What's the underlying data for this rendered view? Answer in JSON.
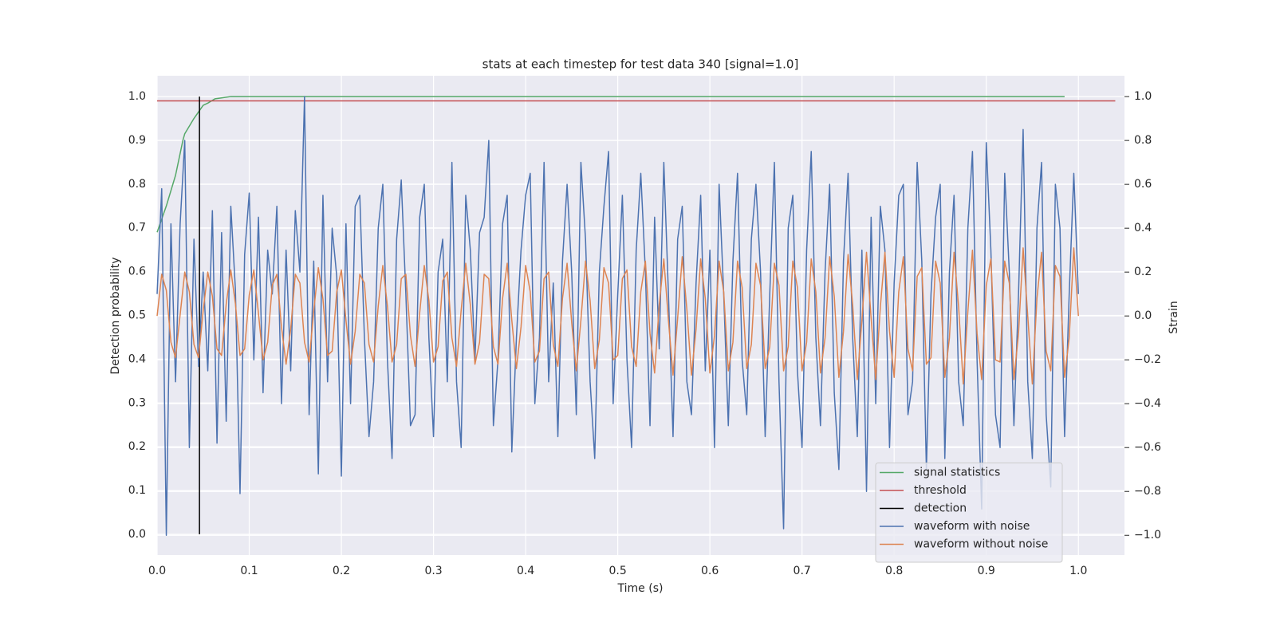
{
  "chart_data": {
    "type": "line",
    "title": "stats at each timestep for test data 340 [signal=1.0]",
    "xlabel": "Time (s)",
    "ylabel": "Detection probability",
    "y2label": "Strain",
    "xlim": [
      0,
      1.05
    ],
    "ylim": [
      -0.0475,
      1.0475
    ],
    "y2lim": [
      -1.09,
      1.095
    ],
    "xticks": [
      {
        "value": 0,
        "label": "0.0"
      },
      {
        "value": 0.1,
        "label": "0.1"
      },
      {
        "value": 0.2,
        "label": "0.2"
      },
      {
        "value": 0.3,
        "label": "0.3"
      },
      {
        "value": 0.4,
        "label": "0.4"
      },
      {
        "value": 0.5,
        "label": "0.5"
      },
      {
        "value": 0.6,
        "label": "0.6"
      },
      {
        "value": 0.7,
        "label": "0.7"
      },
      {
        "value": 0.8,
        "label": "0.8"
      },
      {
        "value": 0.9,
        "label": "0.9"
      },
      {
        "value": 1,
        "label": "1.0"
      }
    ],
    "yticks": [
      {
        "value": 0,
        "label": "0.0"
      },
      {
        "value": 0.1,
        "label": "0.1"
      },
      {
        "value": 0.2,
        "label": "0.2"
      },
      {
        "value": 0.3,
        "label": "0.3"
      },
      {
        "value": 0.4,
        "label": "0.4"
      },
      {
        "value": 0.5,
        "label": "0.5"
      },
      {
        "value": 0.6,
        "label": "0.6"
      },
      {
        "value": 0.7,
        "label": "0.7"
      },
      {
        "value": 0.8,
        "label": "0.8"
      },
      {
        "value": 0.9,
        "label": "0.9"
      },
      {
        "value": 1,
        "label": "1.0"
      }
    ],
    "y2ticks": [
      {
        "value": -1,
        "label": "−1.0"
      },
      {
        "value": -0.8,
        "label": "−0.8"
      },
      {
        "value": -0.6,
        "label": "−0.6"
      },
      {
        "value": -0.4,
        "label": "−0.4"
      },
      {
        "value": -0.2,
        "label": "−0.2"
      },
      {
        "value": 0,
        "label": "0.0"
      },
      {
        "value": 0.2,
        "label": "0.2"
      },
      {
        "value": 0.4,
        "label": "0.4"
      },
      {
        "value": 0.6,
        "label": "0.6"
      },
      {
        "value": 0.8,
        "label": "0.8"
      },
      {
        "value": 1,
        "label": "1.0"
      }
    ],
    "grid": true,
    "legend": "lower right",
    "x": [
      0,
      0.005,
      0.01,
      0.015,
      0.02,
      0.025,
      0.03,
      0.035,
      0.04,
      0.045,
      0.05,
      0.055,
      0.06,
      0.065,
      0.07,
      0.075,
      0.08,
      0.085,
      0.09,
      0.095,
      0.1,
      0.105,
      0.11,
      0.115,
      0.12,
      0.125,
      0.13,
      0.135,
      0.14,
      0.145,
      0.15,
      0.155,
      0.16,
      0.165,
      0.17,
      0.175,
      0.18,
      0.185,
      0.19,
      0.195,
      0.2,
      0.205,
      0.21,
      0.215,
      0.22,
      0.225,
      0.23,
      0.235,
      0.24,
      0.245,
      0.25,
      0.255,
      0.26,
      0.265,
      0.27,
      0.275,
      0.28,
      0.285,
      0.29,
      0.295,
      0.3,
      0.305,
      0.31,
      0.315,
      0.32,
      0.325,
      0.33,
      0.335,
      0.34,
      0.345,
      0.35,
      0.355,
      0.36,
      0.365,
      0.37,
      0.375,
      0.38,
      0.385,
      0.39,
      0.395,
      0.4,
      0.405,
      0.41,
      0.415,
      0.42,
      0.425,
      0.43,
      0.435,
      0.44,
      0.445,
      0.45,
      0.455,
      0.46,
      0.465,
      0.47,
      0.475,
      0.48,
      0.485,
      0.49,
      0.495,
      0.5,
      0.505,
      0.51,
      0.515,
      0.52,
      0.525,
      0.53,
      0.535,
      0.54,
      0.545,
      0.55,
      0.555,
      0.56,
      0.565,
      0.57,
      0.575,
      0.58,
      0.585,
      0.59,
      0.595,
      0.6,
      0.605,
      0.61,
      0.615,
      0.62,
      0.625,
      0.63,
      0.635,
      0.64,
      0.645,
      0.65,
      0.655,
      0.66,
      0.665,
      0.67,
      0.675,
      0.68,
      0.685,
      0.69,
      0.695,
      0.7,
      0.705,
      0.71,
      0.715,
      0.72,
      0.725,
      0.73,
      0.735,
      0.74,
      0.745,
      0.75,
      0.755,
      0.76,
      0.765,
      0.77,
      0.775,
      0.78,
      0.785,
      0.79,
      0.795,
      0.8,
      0.805,
      0.81,
      0.815,
      0.82,
      0.825,
      0.83,
      0.835,
      0.84,
      0.845,
      0.85,
      0.855,
      0.86,
      0.865,
      0.87,
      0.875,
      0.88,
      0.885,
      0.89,
      0.895,
      0.9,
      0.905,
      0.91,
      0.915,
      0.92,
      0.925,
      0.93,
      0.935,
      0.94,
      0.945,
      0.95,
      0.955,
      0.96,
      0.965,
      0.97,
      0.975,
      0.98,
      0.985,
      0.99,
      0.995,
      1
    ],
    "series": [
      {
        "name": "signal statistics",
        "color": "#55a868",
        "x": [
          0,
          0.005,
          0.01,
          0.02,
          0.028,
          0.03,
          0.04,
          0.05,
          0.055,
          0.063,
          0.07,
          0.08,
          0.985
        ],
        "values": [
          0.69,
          0.72,
          0.75,
          0.82,
          0.9,
          0.915,
          0.95,
          0.98,
          0.985,
          0.995,
          0.997,
          1.0,
          1.0
        ]
      },
      {
        "name": "threshold",
        "color": "#c44e52",
        "x": [
          0,
          1.04
        ],
        "values": [
          0.99,
          0.99
        ]
      },
      {
        "name": "detection",
        "color": "#000000",
        "x": [
          0.046,
          0.046
        ],
        "values": [
          0,
          1
        ]
      },
      {
        "name": "waveform with noise",
        "color": "#4c72b0",
        "axis": "y2",
        "values": [
          0.1,
          0.58,
          -1.0,
          0.42,
          -0.3,
          0.42,
          0.8,
          -0.6,
          0.35,
          -0.23,
          0.2,
          -0.25,
          0.48,
          -0.58,
          0.38,
          -0.48,
          0.5,
          0.12,
          -0.81,
          0.28,
          0.56,
          -0.2,
          0.45,
          -0.35,
          0.3,
          0.1,
          0.5,
          -0.4,
          0.3,
          -0.25,
          0.48,
          0.2,
          1.0,
          -0.45,
          0.25,
          -0.72,
          0.55,
          -0.3,
          0.4,
          0.18,
          -0.73,
          0.42,
          -0.4,
          0.5,
          0.55,
          -0.1,
          -0.55,
          -0.3,
          0.4,
          0.6,
          -0.2,
          -0.65,
          0.35,
          0.62,
          0.1,
          -0.5,
          -0.45,
          0.45,
          0.6,
          -0.1,
          -0.55,
          0.2,
          0.35,
          -0.3,
          0.7,
          -0.3,
          -0.6,
          0.55,
          0.3,
          -0.2,
          0.38,
          0.45,
          0.8,
          -0.5,
          -0.2,
          0.42,
          0.55,
          -0.62,
          -0.1,
          0.3,
          0.55,
          0.65,
          -0.4,
          -0.1,
          0.7,
          -0.3,
          0.15,
          -0.55,
          0.25,
          0.6,
          0.2,
          -0.45,
          0.7,
          0.35,
          -0.3,
          -0.65,
          0.2,
          0.5,
          0.75,
          -0.4,
          0.1,
          0.55,
          -0.2,
          -0.6,
          0.3,
          0.65,
          0.2,
          -0.5,
          0.45,
          -0.15,
          0.7,
          0.1,
          -0.55,
          0.35,
          0.5,
          -0.3,
          -0.45,
          0.15,
          0.55,
          -0.25,
          0.3,
          -0.6,
          0.6,
          0.1,
          -0.5,
          0.25,
          0.65,
          -0.2,
          -0.45,
          0.35,
          0.6,
          0.2,
          -0.55,
          0.1,
          0.7,
          -0.3,
          -0.97,
          0.4,
          0.55,
          -0.25,
          -0.6,
          0.3,
          0.75,
          -0.1,
          -0.5,
          0.2,
          0.6,
          -0.35,
          -0.7,
          0.25,
          0.65,
          -0.1,
          -0.55,
          0.3,
          -0.8,
          0.45,
          -0.4,
          0.5,
          0.3,
          -0.6,
          0.15,
          0.55,
          0.6,
          -0.45,
          -0.3,
          0.7,
          0.25,
          -0.7,
          0.1,
          0.45,
          0.6,
          -0.65,
          0.2,
          0.55,
          -0.3,
          -0.5,
          0.4,
          0.75,
          -0.2,
          -0.88,
          0.79,
          0.3,
          -0.45,
          -0.6,
          0.65,
          0.2,
          -0.5,
          0.1,
          0.85,
          -0.3,
          -0.65,
          0.4,
          0.7,
          -0.45,
          -0.78,
          0.6,
          0.4,
          -0.55,
          0.1,
          0.65,
          0.1
        ]
      },
      {
        "name": "waveform without noise",
        "color": "#dd8452",
        "axis": "y2",
        "values": [
          0,
          0.19,
          0.117,
          -0.12,
          -0.19,
          0.006,
          0.2,
          0.11,
          -0.13,
          -0.19,
          0.024,
          0.2,
          0.09,
          -0.15,
          -0.18,
          0.054,
          0.21,
          0.056,
          -0.18,
          -0.15,
          0.095,
          0.21,
          0.012,
          -0.2,
          -0.12,
          0.14,
          0.19,
          -0.05,
          -0.22,
          -0.06,
          0.19,
          0.15,
          -0.12,
          -0.21,
          0.023,
          0.22,
          0.077,
          -0.18,
          -0.16,
          0.11,
          0.21,
          -0.02,
          -0.22,
          -0.07,
          0.19,
          0.15,
          -0.13,
          -0.21,
          0.045,
          0.23,
          0.045,
          -0.21,
          -0.13,
          0.17,
          0.19,
          -0.09,
          -0.23,
          0.013,
          0.23,
          0.07,
          -0.21,
          -0.14,
          0.16,
          0.2,
          -0.1,
          -0.23,
          0.025,
          0.24,
          0.05,
          -0.22,
          -0.12,
          0.19,
          0.17,
          -0.14,
          -0.22,
          0.08,
          0.24,
          -0.02,
          -0.24,
          -0.05,
          0.23,
          0.11,
          -0.21,
          -0.16,
          0.17,
          0.2,
          -0.13,
          -0.23,
          0.08,
          0.24,
          -0.03,
          -0.25,
          -0.02,
          0.25,
          0.07,
          -0.24,
          -0.11,
          0.22,
          0.15,
          -0.2,
          -0.18,
          0.17,
          0.21,
          -0.14,
          -0.23,
          0.11,
          0.25,
          -0.08,
          -0.26,
          0.05,
          0.26,
          -0.02,
          -0.27,
          -0.01,
          0.27,
          0.03,
          -0.27,
          -0.06,
          0.26,
          0.08,
          -0.26,
          -0.09,
          0.25,
          0.11,
          -0.25,
          -0.12,
          0.25,
          0.13,
          -0.24,
          -0.13,
          0.24,
          0.14,
          -0.24,
          -0.14,
          0.24,
          0.14,
          -0.25,
          -0.14,
          0.25,
          0.13,
          -0.25,
          -0.12,
          0.26,
          0.11,
          -0.26,
          -0.1,
          0.27,
          0.09,
          -0.28,
          -0.07,
          0.28,
          0.05,
          -0.29,
          -0.02,
          0.29,
          -0.01,
          -0.29,
          0.04,
          0.29,
          -0.07,
          -0.28,
          0.11,
          0.27,
          -0.15,
          -0.25,
          0.18,
          0.22,
          -0.22,
          -0.19,
          0.25,
          0.15,
          -0.28,
          -0.1,
          0.29,
          0.04,
          -0.31,
          0.02,
          0.3,
          -0.08,
          -0.29,
          0.14,
          0.26,
          -0.2,
          -0.21,
          0.25,
          0.15,
          -0.29,
          -0.08,
          0.31,
          0,
          -0.31,
          0.08,
          0.29,
          -0.16,
          -0.25,
          0.23,
          0.18,
          -0.28,
          -0.1,
          0.31,
          0
        ]
      }
    ]
  }
}
